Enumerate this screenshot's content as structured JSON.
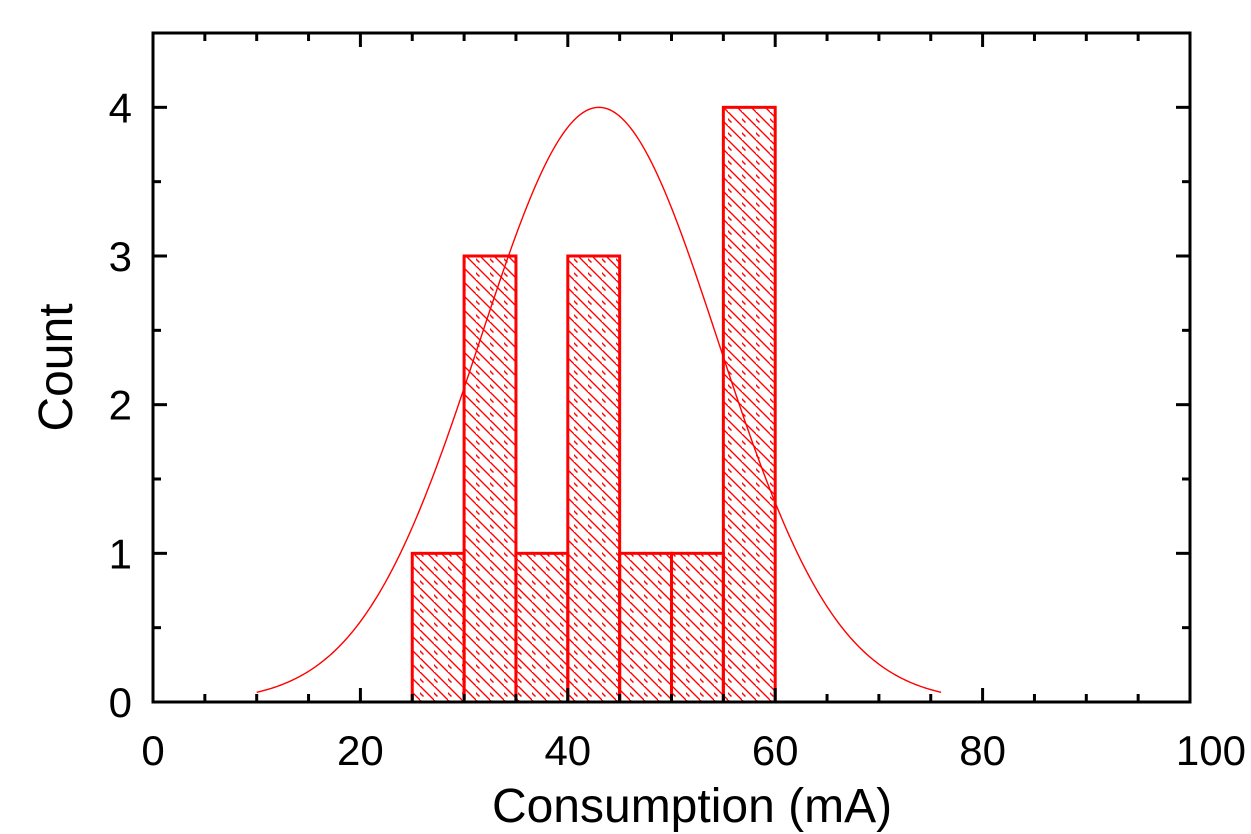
{
  "chart_data": {
    "type": "bar",
    "subtype": "histogram-with-normal-fit",
    "xlabel": "Consumption (mA)",
    "ylabel": "Count",
    "xlim": [
      0,
      100
    ],
    "ylim": [
      0,
      4.5
    ],
    "x_ticks": [
      0,
      20,
      40,
      60,
      80,
      100
    ],
    "y_ticks": [
      0,
      1,
      2,
      3,
      4
    ],
    "x_minor_step": 5,
    "y_minor_step": 0.5,
    "bins": [
      {
        "start": 25,
        "end": 30,
        "count": 1
      },
      {
        "start": 30,
        "end": 35,
        "count": 3
      },
      {
        "start": 35,
        "end": 40,
        "count": 1
      },
      {
        "start": 40,
        "end": 45,
        "count": 3
      },
      {
        "start": 45,
        "end": 50,
        "count": 1
      },
      {
        "start": 50,
        "end": 55,
        "count": 1
      },
      {
        "start": 55,
        "end": 60,
        "count": 4
      }
    ],
    "fit_curve": {
      "type": "normal",
      "mean": 43,
      "sd": 11.5,
      "peak": 4,
      "x_range": [
        10,
        76
      ]
    },
    "bar_color": "#ff0000",
    "bar_fill": "diagonal-hatch",
    "curve_color": "#ff0000",
    "grid": false,
    "legend": "none"
  }
}
